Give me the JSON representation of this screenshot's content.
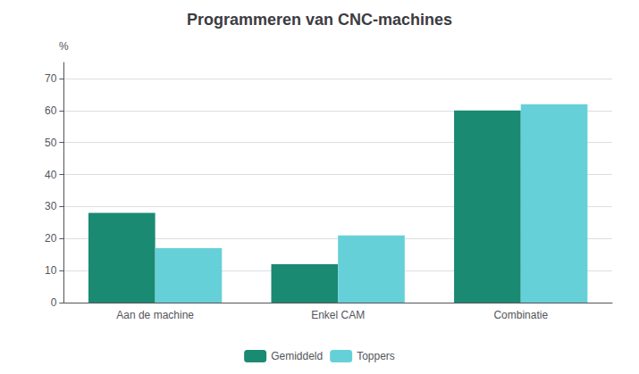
{
  "chart_data": {
    "type": "bar",
    "title": "Programmeren van CNC-machines",
    "categories": [
      "Aan de machine",
      "Enkel CAM",
      "Combinatie"
    ],
    "series": [
      {
        "name": "Gemiddeld",
        "color": "#1a8a72",
        "values": [
          28,
          12,
          60
        ]
      },
      {
        "name": "Toppers",
        "color": "#66d0d8",
        "values": [
          17,
          21,
          62
        ]
      }
    ],
    "ylabel": "%",
    "ylim": [
      0,
      75
    ],
    "yticks": [
      0,
      10,
      20,
      30,
      40,
      50,
      60,
      70
    ],
    "grid": true,
    "legend": "bottom"
  }
}
